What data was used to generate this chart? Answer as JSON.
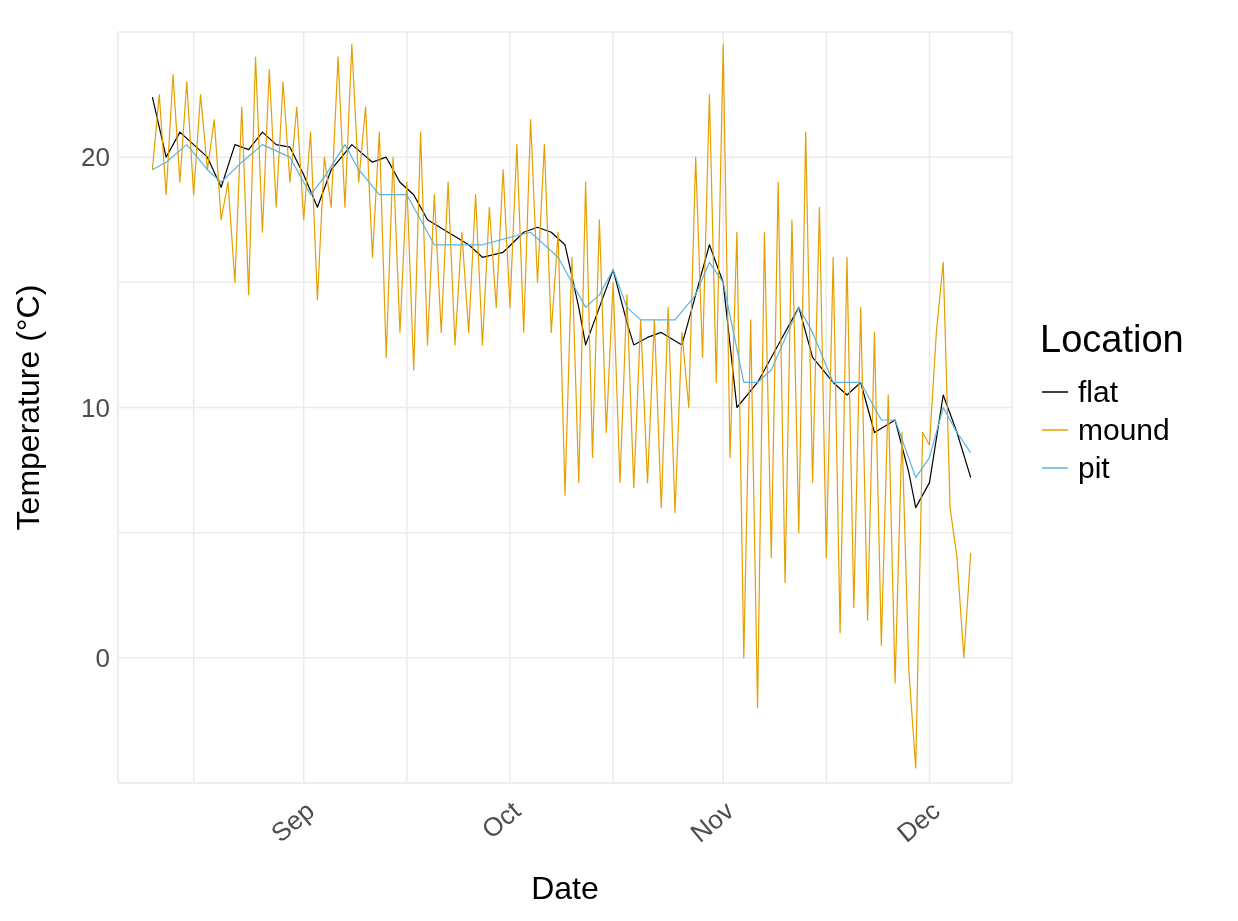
{
  "chart_data": {
    "type": "line",
    "xlabel": "Date",
    "ylabel": "Temperature (°C)",
    "legend_title": "Location",
    "legend": "right",
    "grid": true,
    "xlim": [
      "--08-05",
      "--12-13"
    ],
    "xticks": [
      {
        "value": "--08-16",
        "label": null
      },
      {
        "value": "--09-01",
        "label": "Sep"
      },
      {
        "value": "--09-16",
        "label": null
      },
      {
        "value": "--10-01",
        "label": "Oct"
      },
      {
        "value": "--10-16",
        "label": null
      },
      {
        "value": "--11-01",
        "label": "Nov"
      },
      {
        "value": "--11-16",
        "label": null
      },
      {
        "value": "--12-01",
        "label": "Dec"
      }
    ],
    "ylim": [
      -5,
      25
    ],
    "yticks": [
      {
        "value": -5,
        "label": null
      },
      0,
      {
        "value": 5,
        "label": null
      },
      10,
      {
        "value": 15,
        "label": null
      },
      20,
      {
        "value": 25,
        "label": null
      }
    ],
    "series": [
      {
        "name": "flat",
        "color": "#000000",
        "x": [
          "--08-10",
          "--08-12",
          "--08-14",
          "--08-16",
          "--08-18",
          "--08-20",
          "--08-22",
          "--08-24",
          "--08-26",
          "--08-28",
          "--08-30",
          "--09-01",
          "--09-03",
          "--09-05",
          "--09-08",
          "--09-11",
          "--09-13",
          "--09-15",
          "--09-17",
          "--09-19",
          "--09-22",
          "--09-25",
          "--09-27",
          "--09-30",
          "--10-03",
          "--10-05",
          "--10-07",
          "--10-09",
          "--10-11",
          "--10-12",
          "--10-14",
          "--10-16",
          "--10-18",
          "--10-19",
          "--10-21",
          "--10-23",
          "--10-26",
          "--10-28",
          "--10-30",
          "--11-01",
          "--11-03",
          "--11-06",
          "--11-09",
          "--11-12",
          "--11-14",
          "--11-17",
          "--11-19",
          "--11-21",
          "--11-23",
          "--11-26",
          "--11-28",
          "--11-29",
          "--12-01",
          "--12-03",
          "--12-05",
          "--12-07"
        ],
        "values": [
          22.4,
          20,
          21,
          20.5,
          20,
          18.8,
          20.5,
          20.3,
          21,
          20.5,
          20.4,
          19.3,
          18,
          19.5,
          20.5,
          19.8,
          20,
          19,
          18.5,
          17.5,
          17,
          16.5,
          16,
          16.2,
          17,
          17.2,
          17,
          16.5,
          14,
          12.5,
          14,
          15.5,
          13.4,
          12.5,
          12.8,
          13,
          12.5,
          14.5,
          16.5,
          15,
          10,
          11,
          12.5,
          14,
          12,
          11,
          10.5,
          11,
          9,
          9.5,
          7.4,
          6,
          7,
          10.5,
          9,
          7.2
        ]
      },
      {
        "name": "mound",
        "color": "#e69f00",
        "x": [
          "--08-10",
          "--08-11",
          "--08-12",
          "--08-13",
          "--08-14",
          "--08-15",
          "--08-16",
          "--08-17",
          "--08-18",
          "--08-19",
          "--08-20",
          "--08-21",
          "--08-22",
          "--08-23",
          "--08-24",
          "--08-25",
          "--08-26",
          "--08-27",
          "--08-28",
          "--08-29",
          "--08-30",
          "--08-31",
          "--09-01",
          "--09-02",
          "--09-03",
          "--09-04",
          "--09-05",
          "--09-06",
          "--09-07",
          "--09-08",
          "--09-09",
          "--09-10",
          "--09-11",
          "--09-12",
          "--09-13",
          "--09-14",
          "--09-15",
          "--09-16",
          "--09-17",
          "--09-18",
          "--09-19",
          "--09-20",
          "--09-21",
          "--09-22",
          "--09-23",
          "--09-24",
          "--09-25",
          "--09-26",
          "--09-27",
          "--09-28",
          "--09-29",
          "--09-30",
          "--10-01",
          "--10-02",
          "--10-03",
          "--10-04",
          "--10-05",
          "--10-06",
          "--10-07",
          "--10-08",
          "--10-09",
          "--10-10",
          "--10-11",
          "--10-12",
          "--10-13",
          "--10-14",
          "--10-15",
          "--10-16",
          "--10-17",
          "--10-18",
          "--10-19",
          "--10-20",
          "--10-21",
          "--10-22",
          "--10-23",
          "--10-24",
          "--10-25",
          "--10-26",
          "--10-27",
          "--10-28",
          "--10-29",
          "--10-30",
          "--10-31",
          "--11-01",
          "--11-02",
          "--11-03",
          "--11-04",
          "--11-05",
          "--11-06",
          "--11-07",
          "--11-08",
          "--11-09",
          "--11-10",
          "--11-11",
          "--11-12",
          "--11-13",
          "--11-14",
          "--11-15",
          "--11-16",
          "--11-17",
          "--11-18",
          "--11-19",
          "--11-20",
          "--11-21",
          "--11-22",
          "--11-23",
          "--11-24",
          "--11-25",
          "--11-26",
          "--11-27",
          "--11-28",
          "--11-29",
          "--11-30",
          "--12-01",
          "--12-02",
          "--12-03",
          "--12-04",
          "--12-05",
          "--12-06",
          "--12-07"
        ],
        "values": [
          19.5,
          22.5,
          18.5,
          23.3,
          19,
          23,
          18.5,
          22.5,
          19.5,
          21.5,
          17.5,
          19,
          15,
          22,
          14.5,
          24,
          17,
          23.5,
          18,
          23,
          19,
          22,
          17.5,
          21,
          14.3,
          20,
          18,
          24,
          18,
          24.5,
          19,
          22,
          16,
          21,
          12,
          20,
          13,
          19,
          11.5,
          21,
          12.5,
          18.5,
          13,
          19,
          12.5,
          17,
          13,
          18.5,
          12.5,
          18,
          14,
          19.5,
          14,
          20.5,
          13,
          21.5,
          15,
          20.5,
          13,
          17,
          6.5,
          16,
          7,
          19,
          8,
          17.5,
          9,
          15,
          7,
          14.5,
          6.8,
          13.5,
          7,
          13.5,
          6,
          14,
          5.8,
          13,
          10,
          20,
          12,
          22.5,
          11,
          24.5,
          8,
          17,
          0,
          13.5,
          -2,
          17,
          4,
          19,
          3,
          17.5,
          5,
          21,
          7,
          18,
          4,
          16,
          1,
          16,
          2,
          14,
          1.5,
          13,
          0.5,
          10.5,
          -1,
          9,
          -0.5,
          -4.4,
          9,
          8.5,
          13,
          15.8,
          6,
          4,
          0,
          4.2
        ]
      },
      {
        "name": "pit",
        "color": "#56b4e9",
        "x": [
          "--08-10",
          "--08-12",
          "--08-15",
          "--08-18",
          "--08-20",
          "--08-23",
          "--08-26",
          "--08-30",
          "--09-02",
          "--09-04",
          "--09-07",
          "--09-09",
          "--09-12",
          "--09-16",
          "--09-20",
          "--09-24",
          "--09-27",
          "--10-01",
          "--10-04",
          "--10-08",
          "--10-12",
          "--10-14",
          "--10-16",
          "--10-18",
          "--10-20",
          "--10-23",
          "--10-25",
          "--10-28",
          "--10-30",
          "--11-01",
          "--11-04",
          "--11-06",
          "--11-08",
          "--11-12",
          "--11-14",
          "--11-17",
          "--11-21",
          "--11-24",
          "--11-26",
          "--11-29",
          "--12-01",
          "--12-03",
          "--12-05",
          "--12-07"
        ],
        "values": [
          19.5,
          19.8,
          20.5,
          19.5,
          19,
          19.8,
          20.5,
          20,
          18.5,
          19.2,
          20.5,
          19.5,
          18.5,
          18.5,
          16.5,
          16.5,
          16.5,
          16.8,
          17,
          16,
          14,
          14.5,
          15.5,
          14,
          13.5,
          13.5,
          13.5,
          14.5,
          15.8,
          15,
          11,
          11,
          11.5,
          14,
          13,
          11,
          11,
          9.5,
          9.5,
          7.2,
          8,
          10,
          9,
          8.2
        ]
      }
    ]
  }
}
